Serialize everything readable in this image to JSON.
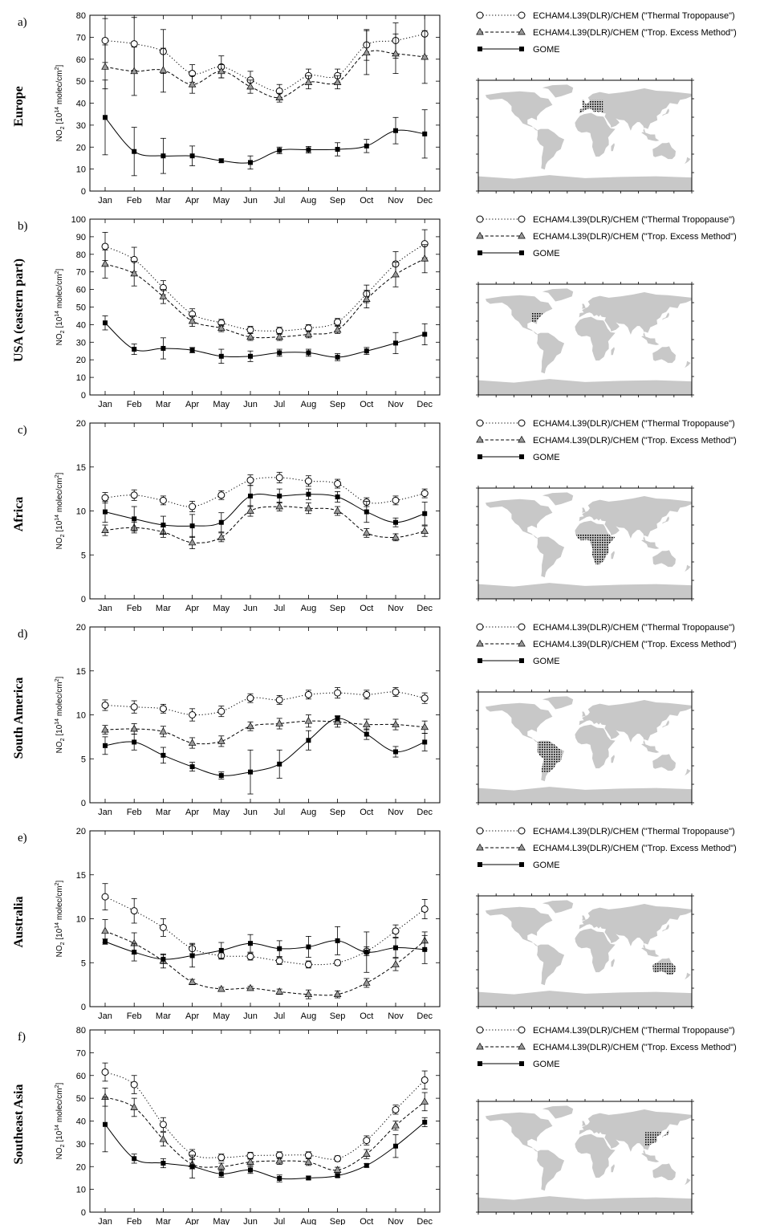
{
  "months": [
    "Jan",
    "Feb",
    "Mar",
    "Apr",
    "May",
    "Jun",
    "Jul",
    "Aug",
    "Sep",
    "Oct",
    "Nov",
    "Dec"
  ],
  "legend": [
    {
      "label": "ECHAM4.L39(DLR)/CHEM (\"Thermal Tropopause\")",
      "style": "dotted",
      "marker": "circle-open"
    },
    {
      "label": "ECHAM4.L39(DLR)/CHEM (\"Trop. Excess Method\")",
      "style": "dashed",
      "marker": "triangle-gray"
    },
    {
      "label": "GOME",
      "style": "solid",
      "marker": "square-black"
    }
  ],
  "ylabel_main": "NO",
  "ylabel_sub": "2",
  "ylabel_mid": " [10",
  "ylabel_sup": "14",
  "ylabel_end": " molec/cm",
  "ylabel_sup2": "2",
  "ylabel_close": "]",
  "colors": {
    "triangle": "#999999",
    "land": "#c8c8c8",
    "line": "#000000"
  },
  "chart_data": [
    {
      "type": "line",
      "panel_label": "a)",
      "region": "Europe",
      "ylim": [
        0,
        80
      ],
      "yticks": [
        0,
        10,
        20,
        30,
        40,
        50,
        60,
        70,
        80
      ],
      "categories": [
        "Jan",
        "Feb",
        "Mar",
        "Apr",
        "May",
        "Jun",
        "Jul",
        "Aug",
        "Sep",
        "Oct",
        "Nov",
        "Dec"
      ],
      "series": [
        {
          "values": [
            68.5,
            67,
            63.5,
            53.5,
            56.5,
            50.5,
            45.5,
            52.5,
            52.5,
            66.5,
            68.5,
            71.5
          ],
          "err": [
            10,
            12,
            10,
            4,
            5,
            4,
            3,
            3,
            3,
            7,
            8,
            10
          ]
        },
        {
          "values": [
            56.5,
            54.5,
            55,
            48.5,
            54.5,
            47.5,
            42.5,
            49.5,
            49.5,
            63,
            62.5,
            61
          ],
          "err": [
            10,
            11,
            10,
            4,
            3,
            3,
            2,
            3,
            3,
            10,
            9,
            12
          ]
        },
        {
          "values": [
            33.5,
            18,
            16,
            16,
            13.8,
            13,
            18.5,
            18.8,
            19,
            20.5,
            27.5,
            26
          ],
          "err": [
            17,
            11,
            8,
            4.5,
            0.8,
            3,
            1.5,
            1.5,
            3,
            3,
            6,
            11
          ]
        }
      ],
      "map_region": "europe"
    },
    {
      "type": "line",
      "panel_label": "b)",
      "region": "USA (eastern part)",
      "ylim": [
        0,
        100
      ],
      "yticks": [
        0,
        10,
        20,
        30,
        40,
        50,
        60,
        70,
        80,
        90,
        100
      ],
      "categories": [
        "Jan",
        "Feb",
        "Mar",
        "Apr",
        "May",
        "Jun",
        "Jul",
        "Aug",
        "Sep",
        "Oct",
        "Nov",
        "Dec"
      ],
      "series": [
        {
          "values": [
            84.5,
            77,
            61,
            46,
            41,
            37,
            36.5,
            38,
            41.5,
            57.5,
            74.5,
            86
          ],
          "err": [
            8,
            7,
            4,
            3,
            2,
            2,
            2,
            2,
            2,
            5,
            7,
            8
          ]
        },
        {
          "values": [
            74.5,
            69,
            56,
            42,
            38,
            33,
            33,
            34.5,
            37,
            54.5,
            68.5,
            77.5
          ],
          "err": [
            8,
            7,
            4,
            3,
            2,
            2,
            2,
            2,
            2,
            5,
            7,
            8
          ]
        },
        {
          "values": [
            41,
            26,
            26.5,
            25.5,
            22,
            22,
            24,
            24,
            21.5,
            25,
            29.5,
            34.5
          ],
          "err": [
            4,
            3,
            6,
            1.5,
            4,
            3,
            2,
            2,
            2,
            2,
            6,
            6
          ]
        }
      ],
      "map_region": "usa"
    },
    {
      "type": "line",
      "panel_label": "c)",
      "region": "Africa",
      "ylim": [
        0,
        20
      ],
      "yticks": [
        0,
        5,
        10,
        15,
        20
      ],
      "categories": [
        "Jan",
        "Feb",
        "Mar",
        "Apr",
        "May",
        "Jun",
        "Jul",
        "Aug",
        "Sep",
        "Oct",
        "Nov",
        "Dec"
      ],
      "series": [
        {
          "values": [
            11.5,
            11.8,
            11.2,
            10.5,
            11.8,
            13.5,
            13.8,
            13.4,
            13.1,
            11,
            11.2,
            12
          ],
          "err": [
            0.6,
            0.6,
            0.5,
            0.6,
            0.5,
            0.6,
            0.6,
            0.6,
            0.5,
            0.5,
            0.5,
            0.5
          ]
        },
        {
          "values": [
            7.8,
            8.1,
            7.6,
            6.4,
            7,
            10,
            10.5,
            10.3,
            10,
            7.5,
            7,
            7.7
          ],
          "err": [
            0.6,
            0.6,
            0.6,
            0.7,
            0.5,
            0.6,
            0.5,
            0.6,
            0.5,
            0.5,
            0.4,
            0.6
          ]
        },
        {
          "values": [
            9.9,
            9.1,
            8.4,
            8.3,
            8.7,
            11.7,
            11.7,
            11.9,
            11.6,
            9.9,
            8.7,
            9.7
          ],
          "err": [
            1.2,
            1.4,
            1,
            1.3,
            1.1,
            1.2,
            0.8,
            0.6,
            0.6,
            1.2,
            0.5,
            1.3
          ]
        }
      ],
      "map_region": "africa"
    },
    {
      "type": "line",
      "panel_label": "d)",
      "region": "South America",
      "ylim": [
        0,
        20
      ],
      "yticks": [
        0,
        5,
        10,
        15,
        20
      ],
      "categories": [
        "Jan",
        "Feb",
        "Mar",
        "Apr",
        "May",
        "Jun",
        "Jul",
        "Aug",
        "Sep",
        "Oct",
        "Nov",
        "Dec"
      ],
      "series": [
        {
          "values": [
            11.1,
            10.9,
            10.7,
            10,
            10.4,
            11.9,
            11.7,
            12.3,
            12.5,
            12.3,
            12.6,
            11.9
          ],
          "err": [
            0.6,
            0.7,
            0.5,
            0.7,
            0.6,
            0.5,
            0.5,
            0.5,
            0.6,
            0.5,
            0.5,
            0.6
          ]
        },
        {
          "values": [
            8.3,
            8.4,
            8.1,
            6.8,
            7,
            8.7,
            9,
            9.3,
            9.2,
            8.9,
            8.9,
            8.6
          ],
          "err": [
            0.5,
            0.6,
            0.6,
            0.6,
            0.6,
            0.5,
            0.6,
            0.7,
            0.6,
            0.6,
            0.6,
            0.7
          ]
        },
        {
          "values": [
            6.5,
            6.9,
            5.4,
            4.1,
            3.1,
            3.5,
            4.4,
            7.1,
            9.6,
            7.8,
            5.8,
            6.9
          ],
          "err": [
            1,
            0.9,
            0.9,
            0.5,
            0.4,
            2.5,
            1.6,
            1.1,
            0.3,
            0.6,
            0.6,
            1
          ]
        }
      ],
      "map_region": "samerica"
    },
    {
      "type": "line",
      "panel_label": "e)",
      "region": "Australia",
      "ylim": [
        0,
        20
      ],
      "yticks": [
        0,
        5,
        10,
        15,
        20
      ],
      "categories": [
        "Jan",
        "Feb",
        "Mar",
        "Apr",
        "May",
        "Jun",
        "Jul",
        "Aug",
        "Sep",
        "Oct",
        "Nov",
        "Dec"
      ],
      "series": [
        {
          "values": [
            12.5,
            10.9,
            9,
            6.6,
            5.8,
            5.7,
            5.2,
            4.8,
            5,
            6.3,
            8.6,
            11.1
          ],
          "err": [
            1.5,
            1.4,
            1,
            0.6,
            0.4,
            0.4,
            0.4,
            0.4,
            0.3,
            0.5,
            0.7,
            1.1
          ]
        },
        {
          "values": [
            8.6,
            7.2,
            5.2,
            2.8,
            2,
            2.1,
            1.7,
            1.4,
            1.4,
            2.7,
            4.8,
            7.5
          ],
          "err": [
            1.3,
            1.2,
            0.8,
            0.3,
            0.2,
            0.2,
            0.3,
            0.5,
            0.4,
            0.5,
            0.7,
            1
          ]
        },
        {
          "values": [
            7.4,
            6.2,
            5.4,
            5.8,
            6.4,
            7.2,
            6.6,
            6.8,
            7.5,
            6.2,
            6.7,
            6.5
          ],
          "err": [
            0.3,
            1,
            0.5,
            1.3,
            0.9,
            1,
            0.9,
            1.2,
            1.6,
            2.3,
            1.1,
            1.6
          ]
        }
      ],
      "map_region": "australia"
    },
    {
      "type": "line",
      "panel_label": "f)",
      "region": "Southeast Asia",
      "ylim": [
        0,
        80
      ],
      "yticks": [
        0,
        10,
        20,
        30,
        40,
        50,
        60,
        70,
        80
      ],
      "categories": [
        "Jan",
        "Feb",
        "Mar",
        "Apr",
        "May",
        "Jun",
        "Jul",
        "Aug",
        "Sep",
        "Oct",
        "Nov",
        "Dec"
      ],
      "series": [
        {
          "values": [
            61.5,
            56,
            38.5,
            25.5,
            24,
            24.8,
            25,
            25,
            23.5,
            31.5,
            45,
            58
          ],
          "err": [
            4,
            4,
            3,
            2,
            1.5,
            1.5,
            1.5,
            1.5,
            1.2,
            2,
            2,
            4
          ]
        },
        {
          "values": [
            50.5,
            46,
            32,
            21,
            20,
            22,
            22.5,
            22,
            18.5,
            25.5,
            38,
            48.5
          ],
          "err": [
            4,
            4,
            3,
            2,
            1.5,
            1.5,
            1.5,
            1.5,
            1.2,
            2,
            2,
            4
          ]
        },
        {
          "values": [
            38.5,
            23.5,
            21.5,
            20,
            16.8,
            18.5,
            14.8,
            15,
            16,
            20.5,
            29,
            39.5
          ],
          "err": [
            12,
            2,
            2,
            5,
            1.5,
            1.5,
            1.5,
            0.8,
            0.7,
            0.8,
            5,
            2
          ]
        }
      ],
      "map_region": "seasia"
    }
  ]
}
